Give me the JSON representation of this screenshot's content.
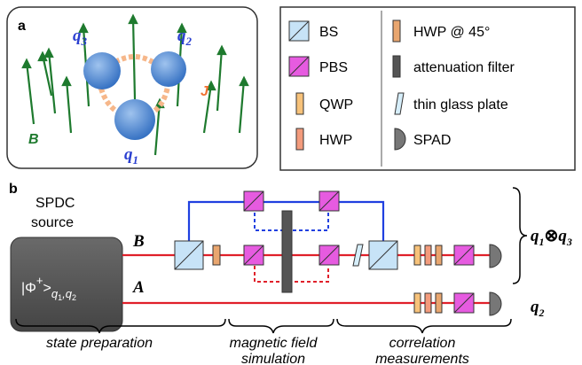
{
  "panel_a": {
    "label": "a",
    "qubits": [
      {
        "symbol": "q",
        "index": "1"
      },
      {
        "symbol": "q",
        "index": "2"
      },
      {
        "symbol": "q",
        "index": "3"
      }
    ],
    "coupling": "J",
    "field": "B"
  },
  "legend": {
    "items": [
      "BS",
      "PBS",
      "QWP",
      "HWP",
      "HWP @ 45°",
      "attenuation filter",
      "thin glass plate",
      "SPAD"
    ]
  },
  "panel_b": {
    "label": "b",
    "source": [
      "SPDC",
      "source"
    ],
    "state": {
      "ket": "|Φ",
      "sup": "+",
      "close": ">",
      "sub": [
        "q",
        "1",
        ",q",
        "2"
      ]
    },
    "beams": [
      "B",
      "A"
    ],
    "output_top": {
      "symbol": "q",
      "index": "1",
      "op": "⊗",
      "symbol2": "q",
      "index2": "3"
    },
    "output_bottom": {
      "symbol": "q",
      "index": "2"
    },
    "stages": [
      [
        "state preparation"
      ],
      [
        "magnetic field",
        "simulation"
      ],
      [
        "correlation",
        "measurements"
      ]
    ]
  }
}
